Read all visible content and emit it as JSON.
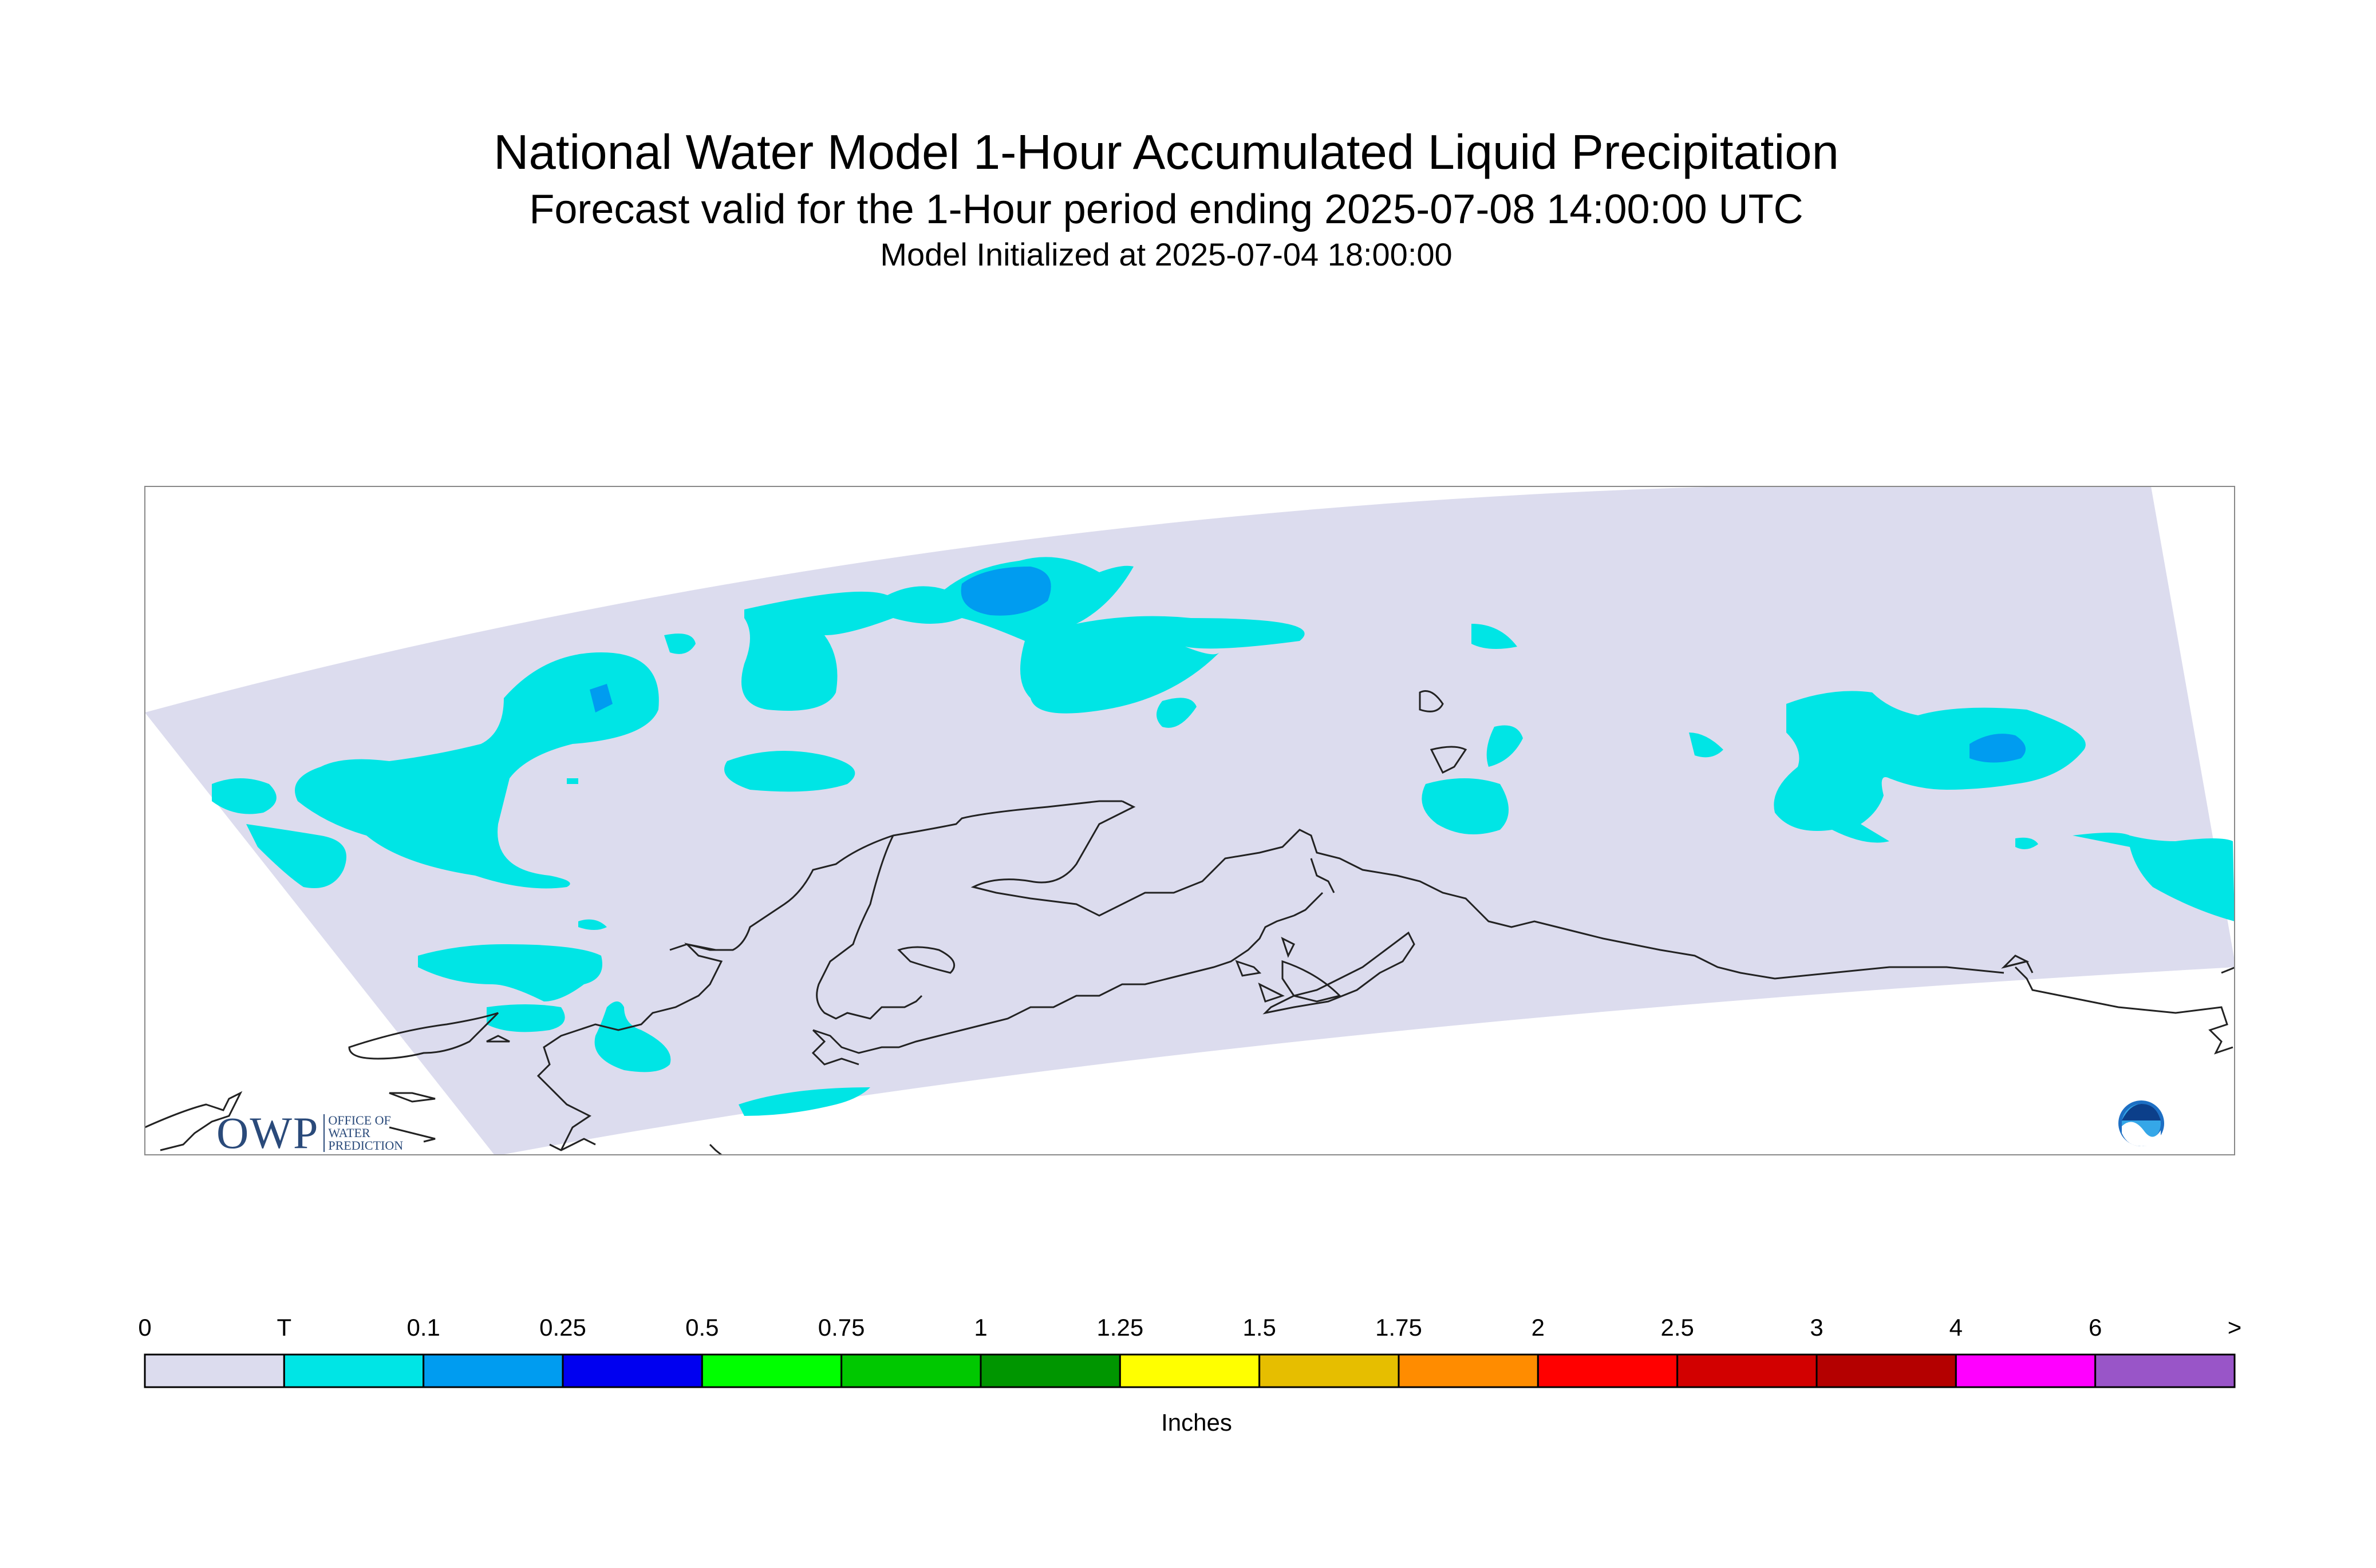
{
  "header": {
    "title": "National Water Model 1-Hour Accumulated Liquid Precipitation",
    "subtitle": "Forecast valid for the 1-Hour period ending 2025-07-08 14:00:00 UTC",
    "init": "Model Initialized at 2025-07-04 18:00:00"
  },
  "map": {
    "region": "Alaska",
    "background_color": "#dcdcee",
    "precip_color_trace": "#00e5e5",
    "precip_color_01": "#009cf0"
  },
  "legend": {
    "labels": [
      "0",
      "T",
      "0.1",
      "0.25",
      "0.5",
      "0.75",
      "1",
      "1.25",
      "1.5",
      "1.75",
      "2",
      "2.5",
      "3",
      "4",
      "6",
      ">"
    ],
    "colors": [
      "#dcdcee",
      "#00e5e5",
      "#009cf0",
      "#0000f0",
      "#00ff00",
      "#00c800",
      "#009600",
      "#ffff00",
      "#e6be00",
      "#ff8c00",
      "#ff0000",
      "#d20000",
      "#b40000",
      "#ff00ff",
      "#9955c8"
    ],
    "units": "Inches"
  },
  "logos": {
    "owp_letters": "OWP",
    "owp_line1": "OFFICE OF",
    "owp_line2": "WATER",
    "owp_line3": "PREDICTION",
    "noaa": "NOAA"
  }
}
